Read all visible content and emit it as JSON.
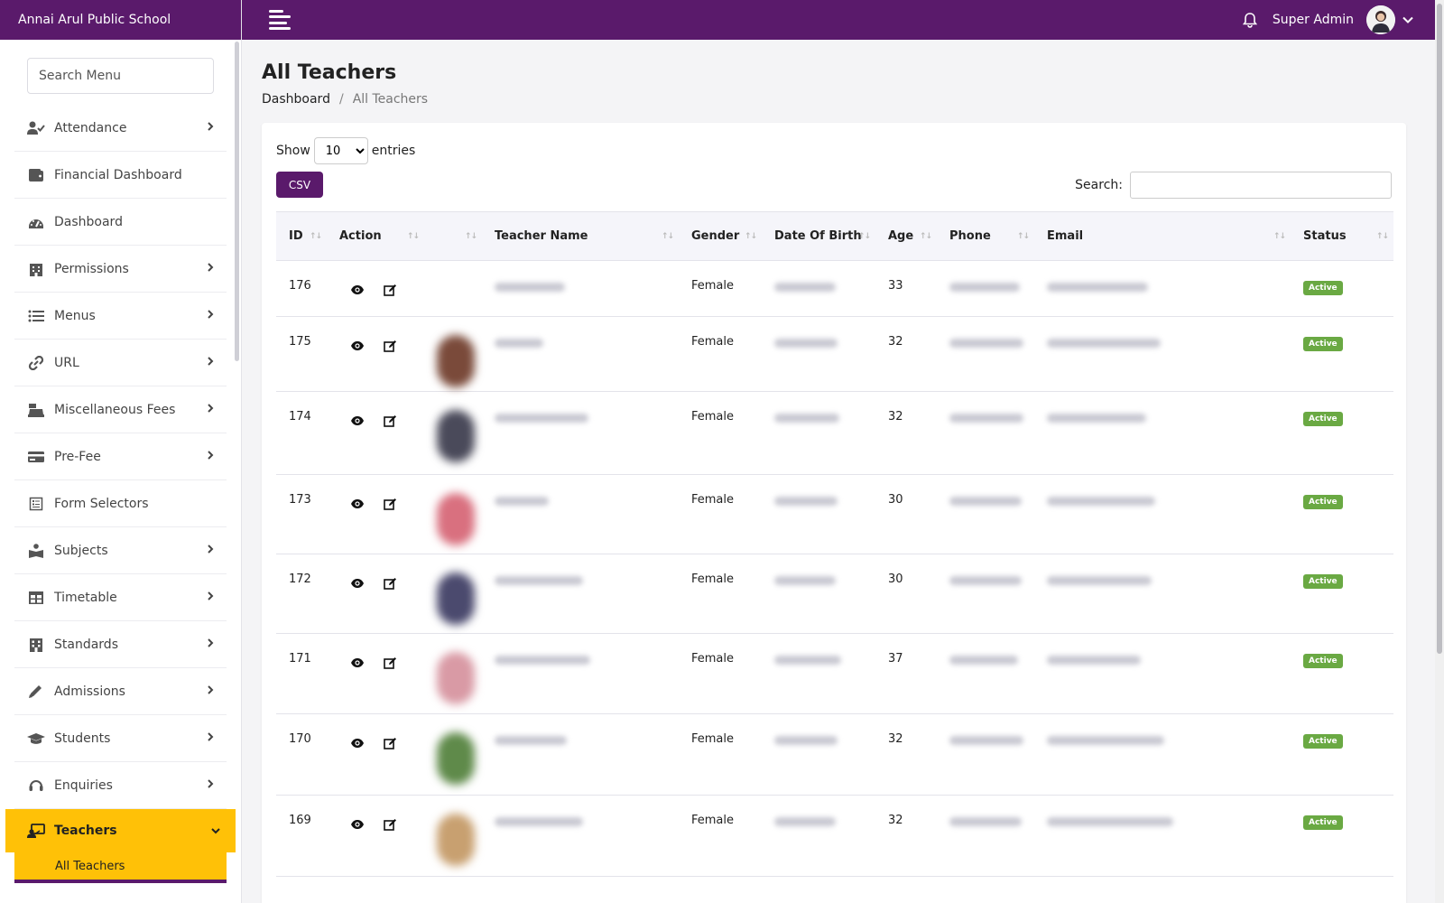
{
  "brand": {
    "school_name": "Annai Arul Public School"
  },
  "sidebar": {
    "search_placeholder": "Search Menu",
    "items": [
      {
        "label": "Attendance",
        "icon": "user-check-icon",
        "has_children": true
      },
      {
        "label": "Financial Dashboard",
        "icon": "wallet-icon",
        "has_children": false
      },
      {
        "label": "Dashboard",
        "icon": "gauge-icon",
        "has_children": false
      },
      {
        "label": "Permissions",
        "icon": "building-icon",
        "has_children": true
      },
      {
        "label": "Menus",
        "icon": "list-icon",
        "has_children": true
      },
      {
        "label": "URL",
        "icon": "link-icon",
        "has_children": true
      },
      {
        "label": "Miscellaneous Fees",
        "icon": "cash-register-icon",
        "has_children": true
      },
      {
        "label": "Pre-Fee",
        "icon": "credit-card-icon",
        "has_children": true
      },
      {
        "label": "Form Selectors",
        "icon": "form-icon",
        "has_children": false
      },
      {
        "label": "Subjects",
        "icon": "book-reader-icon",
        "has_children": true
      },
      {
        "label": "Timetable",
        "icon": "table-icon",
        "has_children": true
      },
      {
        "label": "Standards",
        "icon": "school-building-icon",
        "has_children": true
      },
      {
        "label": "Admissions",
        "icon": "pencil-icon",
        "has_children": true
      },
      {
        "label": "Students",
        "icon": "graduation-cap-icon",
        "has_children": true
      },
      {
        "label": "Enquiries",
        "icon": "headset-icon",
        "has_children": true
      }
    ],
    "active_item": {
      "label": "Teachers",
      "icon": "chalkboard-teacher-icon"
    },
    "active_subitem": "All Teachers"
  },
  "topbar": {
    "user_name": "Super Admin"
  },
  "page": {
    "title": "All Teachers",
    "breadcrumb_home": "Dashboard",
    "breadcrumb_sep": "/",
    "breadcrumb_current": "All Teachers"
  },
  "table_controls": {
    "show_label": "Show",
    "entries_value": "10",
    "entries_label": "entries",
    "csv_label": "CSV",
    "search_label": "Search:"
  },
  "table": {
    "columns": [
      "ID",
      "Action",
      "",
      "Teacher Name",
      "Gender",
      "Date Of Birth",
      "Age",
      "Phone",
      "Email",
      "Status"
    ],
    "rows": [
      {
        "id": "176",
        "gender": "Female",
        "age": "33",
        "status": "Active",
        "has_photo": false,
        "photo_color": "#ffffff"
      },
      {
        "id": "175",
        "gender": "Female",
        "age": "32",
        "status": "Active",
        "has_photo": true,
        "photo_color": "#7a4a3a"
      },
      {
        "id": "174",
        "gender": "Female",
        "age": "32",
        "status": "Active",
        "has_photo": true,
        "photo_color": "#4a4a5a"
      },
      {
        "id": "173",
        "gender": "Female",
        "age": "30",
        "status": "Active",
        "has_photo": true,
        "photo_color": "#d9707f"
      },
      {
        "id": "172",
        "gender": "Female",
        "age": "30",
        "status": "Active",
        "has_photo": true,
        "photo_color": "#4b4a6e"
      },
      {
        "id": "171",
        "gender": "Female",
        "age": "37",
        "status": "Active",
        "has_photo": true,
        "photo_color": "#d99aa5"
      },
      {
        "id": "170",
        "gender": "Female",
        "age": "32",
        "status": "Active",
        "has_photo": true,
        "photo_color": "#5f8a4a"
      },
      {
        "id": "169",
        "gender": "Female",
        "age": "32",
        "status": "Active",
        "has_photo": true,
        "photo_color": "#c8a070"
      }
    ]
  },
  "colors": {
    "brand_purple": "#5a1a6b",
    "active_yellow": "#ffc107",
    "status_green": "#6aa943"
  }
}
